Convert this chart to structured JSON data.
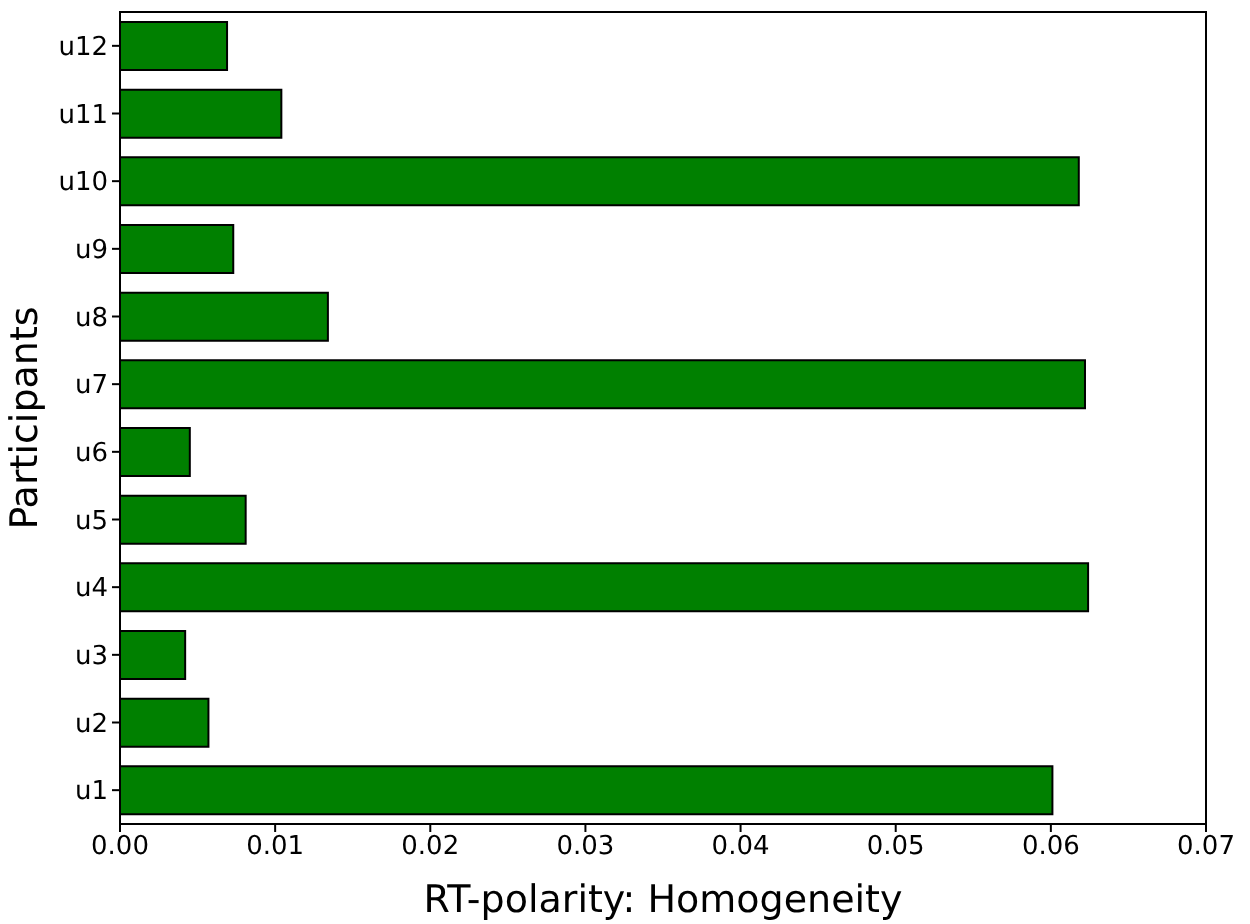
{
  "chart_data": {
    "type": "bar",
    "orientation": "horizontal",
    "xlabel": "RT-polarity: Homogeneity",
    "ylabel": "Participants",
    "categories": [
      "u12",
      "u11",
      "u10",
      "u9",
      "u8",
      "u7",
      "u6",
      "u5",
      "u4",
      "u3",
      "u2",
      "u1"
    ],
    "values": [
      0.0069,
      0.0104,
      0.0618,
      0.0073,
      0.0134,
      0.0622,
      0.0045,
      0.0081,
      0.0624,
      0.0042,
      0.0057,
      0.0601
    ],
    "color": "#008000",
    "xlim": [
      0,
      0.07
    ],
    "xticks": [
      {
        "value": 0,
        "label": "0.00"
      },
      {
        "value": 0.01,
        "label": "0.01"
      },
      {
        "value": 0.02,
        "label": "0.02"
      },
      {
        "value": 0.03,
        "label": "0.03"
      },
      {
        "value": 0.04,
        "label": "0.04"
      },
      {
        "value": 0.05,
        "label": "0.05"
      },
      {
        "value": 0.06,
        "label": "0.06"
      },
      {
        "value": 0.07,
        "label": "0.07"
      }
    ],
    "grid": false
  }
}
